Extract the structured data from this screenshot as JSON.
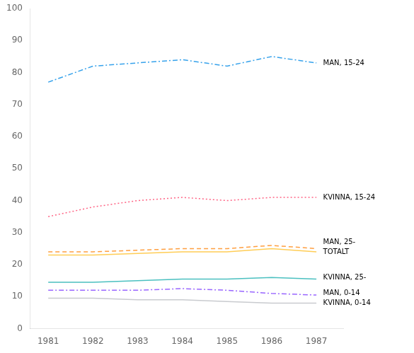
{
  "chart_data": {
    "type": "line",
    "x": [
      1981,
      1982,
      1983,
      1984,
      1985,
      1986,
      1987
    ],
    "series": [
      {
        "name": "MAN, 15-24",
        "values": [
          77,
          82,
          83,
          84,
          82,
          85,
          83
        ],
        "line_style": "dashdot"
      },
      {
        "name": "KVINNA, 15-24",
        "values": [
          35,
          38,
          40,
          41,
          40,
          41,
          41
        ],
        "line_style": "dotted"
      },
      {
        "name": "MAN, 25-",
        "values": [
          24,
          24,
          24.5,
          25,
          25,
          26,
          25
        ],
        "line_style": "dashed"
      },
      {
        "name": "TOTALT",
        "values": [
          23,
          23,
          23.5,
          24,
          24,
          25,
          24
        ],
        "line_style": "solid"
      },
      {
        "name": "KVINNA, 25-",
        "values": [
          14.5,
          14.5,
          15,
          15.5,
          15.5,
          16,
          15.5
        ],
        "line_style": "solid"
      },
      {
        "name": "MAN, 0-14",
        "values": [
          12,
          12,
          12,
          12.5,
          12,
          11,
          10.5
        ],
        "line_style": "dashdot"
      },
      {
        "name": "KVINNA, 0-14",
        "values": [
          9.5,
          9.5,
          9,
          9,
          8.5,
          8,
          8
        ],
        "line_style": "solid"
      }
    ],
    "annotations": [
      {
        "text": "MAN, 15-24",
        "x": 1987.15,
        "y": 83
      },
      {
        "text": "KVINNA, 15-24",
        "x": 1987.15,
        "y": 41
      },
      {
        "text": "MAN, 25-",
        "x": 1987.15,
        "y": 27.0
      },
      {
        "text": "TOTALT",
        "x": 1987.15,
        "y": 24.0
      },
      {
        "text": "KVINNA, 25-",
        "x": 1987.15,
        "y": 16.0
      },
      {
        "text": "MAN, 0-14",
        "x": 1987.15,
        "y": 11.0
      },
      {
        "text": "KVINNA, 0-14",
        "x": 1987.15,
        "y": 8.0
      }
    ],
    "xlim": [
      1980.6,
      1987.6
    ],
    "ylim": [
      0,
      100
    ],
    "xticks": [
      1981,
      1982,
      1983,
      1984,
      1985,
      1986,
      1987
    ],
    "yticks": [
      0,
      10,
      20,
      30,
      40,
      50,
      60,
      70,
      80,
      90,
      100
    ],
    "grid": false
  }
}
